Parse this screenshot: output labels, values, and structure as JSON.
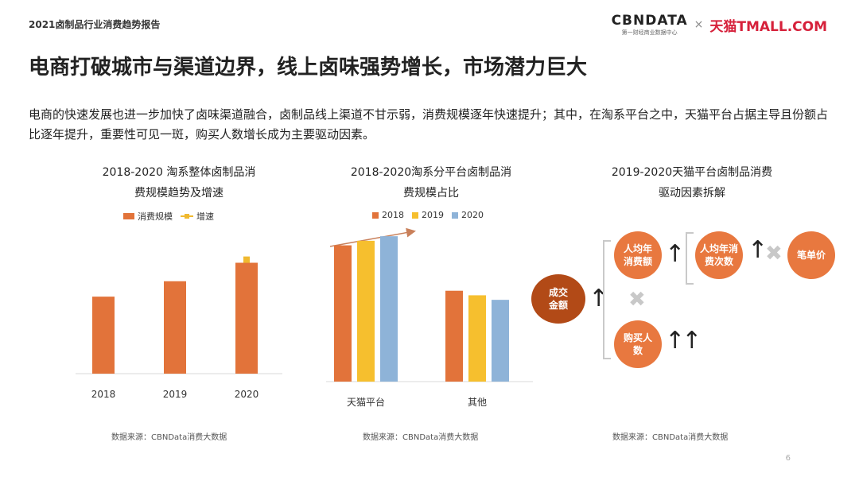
{
  "header": {
    "report_label": "2021卤制品行业消费趋势报告",
    "brand_cbndata": "CBNDATA",
    "brand_cbndata_sub": "第一财经商业数据中心",
    "brand_sep": "×",
    "brand_tmall": "天猫TMALL.COM"
  },
  "headline": "电商打破城市与渠道边界，线上卤味强势增长，市场潜力巨大",
  "summary": "电商的快速发展也进一步加快了卤味渠道融合，卤制品线上渠道不甘示弱，消费规模逐年快速提升；其中，在淘系平台之中，天猫平台占据主导且份额占比逐年提升，重要性可见一斑，购买人数增长成为主要驱动因素。",
  "panel1": {
    "title_line1": "2018-2020 淘系整体卤制品消",
    "title_line2": "费规模趋势及增速",
    "legend_bar": "消费规模",
    "legend_line": "增速",
    "source": "数据来源：CBNData消费大数据"
  },
  "panel2": {
    "title_line1": "2018-2020淘系分平台卤制品消",
    "title_line2": "费规模占比",
    "source": "数据来源：CBNData消费大数据"
  },
  "panel3": {
    "title_line1": "2019-2020天猫平台卤制品消费",
    "title_line2": "驱动因素拆解",
    "main_node": "成交金额",
    "node_per_capita_spend": "人均年消费额",
    "node_buyers": "购买人数",
    "node_frequency": "人均年消费次数",
    "node_unit_price": "笔单价",
    "source": "数据来源：CBNData消费大数据"
  },
  "colors": {
    "c2018": "#e2733a",
    "c2019": "#f6bf2e",
    "c2020": "#8eb3d8",
    "growth": "#f0b92f"
  },
  "chart_data": [
    {
      "type": "bar",
      "categories": [
        "2018",
        "2019",
        "2020"
      ],
      "series": [
        {
          "name": "消费规模",
          "values": [
            50,
            60,
            72
          ]
        },
        {
          "name": "增速",
          "values": [
            null,
            null,
            74
          ]
        }
      ],
      "ylim": [
        0,
        80
      ],
      "grid": false,
      "legend": "top"
    },
    {
      "type": "bar",
      "categories": [
        "天猫平台",
        "其他"
      ],
      "series": [
        {
          "name": "2018",
          "values": [
            60,
            40
          ]
        },
        {
          "name": "2019",
          "values": [
            62,
            38
          ]
        },
        {
          "name": "2020",
          "values": [
            64,
            36
          ]
        }
      ],
      "ylim": [
        0,
        70
      ],
      "grid": false,
      "legend": "top"
    }
  ]
}
